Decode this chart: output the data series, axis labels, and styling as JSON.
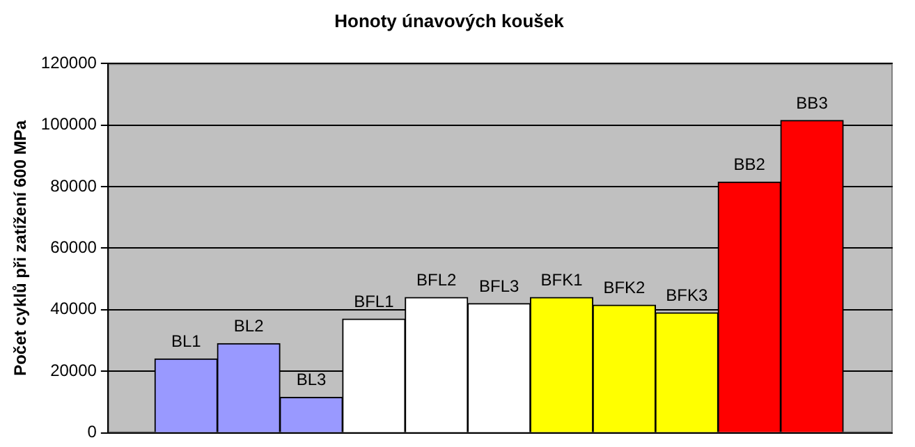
{
  "chart_data": {
    "type": "bar",
    "title": "Honoty únavových koušek",
    "ylabel": "Počet cyklů při zatížení 600 MPa",
    "categories": [
      null,
      null,
      null,
      null,
      null,
      null,
      null,
      null,
      null,
      null,
      null
    ],
    "values": [
      24000,
      29000,
      11500,
      37000,
      44000,
      42000,
      44000,
      41500,
      39000,
      81500,
      101500
    ],
    "colors": [
      "#9999ff",
      "#9999ff",
      "#9999ff",
      "#ffffff",
      "#ffffff",
      "#ffffff",
      "#ffff00",
      "#ffff00",
      "#ffff00",
      "#ff0000",
      "#ff0000"
    ],
    "value_labels": [
      "BL1",
      "BL2",
      "BL3",
      "BFL1",
      "BFL2",
      "BFL3",
      "BFK1",
      "BFK2",
      "BFK3",
      "BB2",
      "BB3"
    ],
    "ylim": [
      0,
      120000
    ],
    "yticks": [
      0,
      20000,
      40000,
      60000,
      80000,
      100000,
      120000
    ],
    "grid": "y",
    "legend": false,
    "tick_labels": "y"
  }
}
